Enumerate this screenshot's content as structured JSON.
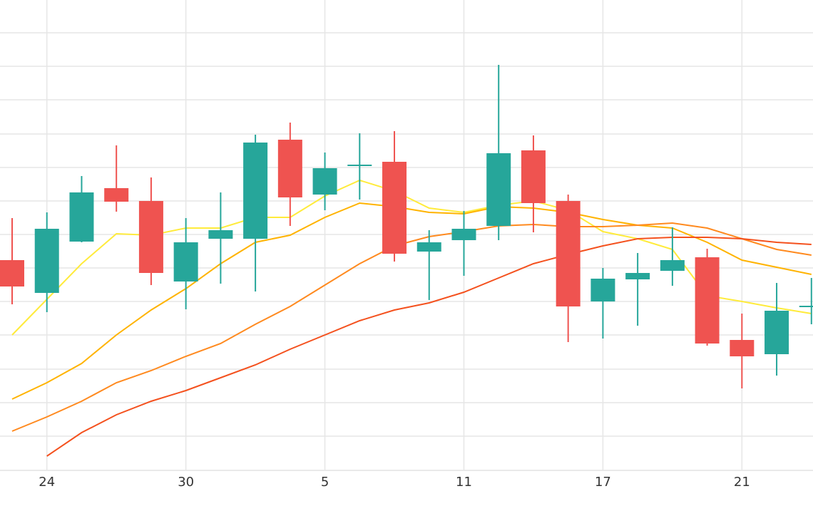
{
  "chart_data": {
    "type": "candlestick",
    "categories": [
      null,
      "24",
      null,
      null,
      null,
      "30",
      null,
      null,
      null,
      "5",
      null,
      null,
      null,
      "11",
      null,
      null,
      null,
      "17",
      null,
      null,
      null,
      "21",
      null,
      null
    ],
    "open": [
      295,
      249,
      321,
      396,
      378,
      265,
      325,
      325,
      464,
      387,
      429,
      433,
      307,
      323,
      343,
      449,
      378,
      237,
      268,
      280,
      299,
      183,
      163,
      230
    ],
    "close": [
      258,
      339,
      390,
      377,
      277,
      320,
      337,
      460,
      383,
      424,
      429,
      304,
      320,
      339,
      445,
      375,
      230,
      269,
      277,
      295,
      178,
      160,
      224,
      231
    ],
    "high": [
      354,
      362,
      413,
      456,
      411,
      354,
      390,
      471,
      488,
      446,
      473,
      476,
      337,
      364,
      569,
      470,
      387,
      284,
      305,
      341,
      311,
      220,
      263,
      270
    ],
    "low": [
      233,
      222,
      320,
      363,
      260,
      226,
      262,
      251,
      343,
      365,
      380,
      293,
      239,
      273,
      323,
      334,
      180,
      185,
      203,
      259,
      175,
      115,
      133,
      205
    ],
    "up_color": "#26a69a",
    "down_color": "#ef5350",
    "overlays": [
      {
        "color": "#ffeb3b",
        "values": [
          190,
          240,
          290,
          332,
          330,
          340,
          340,
          355,
          355,
          385,
          407,
          392,
          368,
          362,
          372,
          378,
          365,
          335,
          325,
          310,
          245,
          237,
          228,
          220
        ]
      },
      {
        "color": "#ffb300",
        "values": [
          100,
          123,
          150,
          190,
          225,
          255,
          290,
          320,
          330,
          355,
          375,
          370,
          362,
          360,
          370,
          368,
          362,
          352,
          344,
          340,
          320,
          295,
          285,
          275
        ]
      },
      {
        "color": "#ff8a1f",
        "values": [
          55,
          75,
          97,
          123,
          140,
          160,
          178,
          205,
          230,
          260,
          290,
          315,
          328,
          335,
          343,
          345,
          342,
          342,
          344,
          347,
          340,
          325,
          310,
          302
        ]
      },
      {
        "color": "#f4511e",
        "values": [
          null,
          20,
          53,
          78,
          97,
          112,
          130,
          148,
          170,
          190,
          210,
          225,
          235,
          250,
          270,
          290,
          303,
          315,
          325,
          327,
          327,
          325,
          320,
          317
        ]
      }
    ],
    "ylim": [
      0,
      660
    ],
    "yticks": [
      0,
      48,
      95,
      142,
      190,
      237,
      284,
      331,
      378,
      425,
      472,
      520,
      567,
      614
    ],
    "grid": true
  }
}
